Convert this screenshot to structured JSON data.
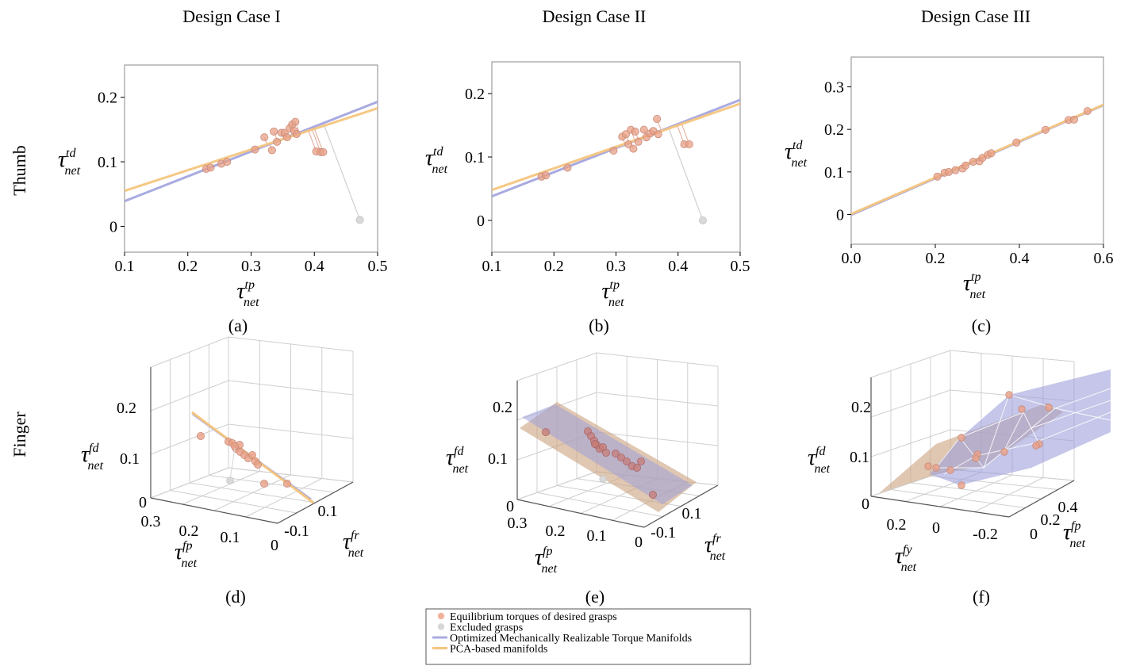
{
  "column_titles": [
    "Design Case I",
    "Design Case II",
    "Design Case III"
  ],
  "row_titles": [
    "Thumb",
    "Finger"
  ],
  "legend": [
    {
      "label": "Equilibrium torques of desired grasps",
      "kind": "marker",
      "color": "#f3b39a"
    },
    {
      "label": "Excluded grasps",
      "kind": "marker",
      "color": "#d7d7d7"
    },
    {
      "label": "Optimized Mechanically Realizable Torque Manifolds",
      "kind": "line",
      "color": "#a9abe0"
    },
    {
      "label": "PCA-based manifolds",
      "kind": "line",
      "color": "#f5c57e"
    }
  ],
  "colors": {
    "desired_marker": "#e8a087",
    "desired_marker_edge": "#c98a78",
    "excluded_marker": "#d9d9d9",
    "optimized": "#a9abe0",
    "pca": "#f5c57e",
    "pca_plane": "#c9a27f",
    "opt_plane": "#9fa0da"
  },
  "chart_data": [
    {
      "id": "a",
      "type": "scatter",
      "caption": "(a)",
      "axis_symbol": "τ",
      "xlabel_sup": "tp",
      "xlabel_sub": "net",
      "ylabel_sup": "td",
      "ylabel_sub": "net",
      "xlim": [
        0.1,
        0.5
      ],
      "ylim": [
        -0.04,
        0.25
      ],
      "xticks": [
        0.1,
        0.2,
        0.3,
        0.4,
        0.5
      ],
      "xtick_labels": [
        "0.1",
        "0.2",
        "0.3",
        "0.4",
        "0.5"
      ],
      "yticks": [
        0,
        0.1,
        0.2
      ],
      "ytick_labels": [
        "0",
        "0.1",
        "0.2"
      ],
      "points": [
        [
          0.229,
          0.089
        ],
        [
          0.236,
          0.091
        ],
        [
          0.253,
          0.097
        ],
        [
          0.262,
          0.1
        ],
        [
          0.306,
          0.119
        ],
        [
          0.321,
          0.138
        ],
        [
          0.333,
          0.118
        ],
        [
          0.336,
          0.147
        ],
        [
          0.341,
          0.131
        ],
        [
          0.348,
          0.145
        ],
        [
          0.353,
          0.145
        ],
        [
          0.357,
          0.138
        ],
        [
          0.361,
          0.152
        ],
        [
          0.365,
          0.158
        ],
        [
          0.368,
          0.148
        ],
        [
          0.37,
          0.162
        ],
        [
          0.372,
          0.143
        ],
        [
          0.403,
          0.116
        ],
        [
          0.41,
          0.115
        ],
        [
          0.414,
          0.115
        ]
      ],
      "excluded": [
        [
          0.472,
          0.01
        ]
      ],
      "optimized_line": [
        [
          0.1,
          0.039
        ],
        [
          0.5,
          0.193
        ]
      ],
      "pca_line": [
        [
          0.1,
          0.055
        ],
        [
          0.5,
          0.183
        ]
      ]
    },
    {
      "id": "b",
      "type": "scatter",
      "caption": "(b)",
      "axis_symbol": "τ",
      "xlabel_sup": "tp",
      "xlabel_sub": "net",
      "ylabel_sup": "td",
      "ylabel_sub": "net",
      "xlim": [
        0.1,
        0.5
      ],
      "ylim": [
        -0.05,
        0.25
      ],
      "xticks": [
        0.1,
        0.2,
        0.3,
        0.4,
        0.5
      ],
      "xtick_labels": [
        "0.1",
        "0.2",
        "0.3",
        "0.4",
        "0.5"
      ],
      "yticks": [
        0,
        0.1,
        0.2
      ],
      "ytick_labels": [
        "0",
        "0.1",
        "0.2"
      ],
      "points": [
        [
          0.18,
          0.069
        ],
        [
          0.187,
          0.071
        ],
        [
          0.222,
          0.083
        ],
        [
          0.296,
          0.11
        ],
        [
          0.31,
          0.132
        ],
        [
          0.316,
          0.136
        ],
        [
          0.32,
          0.12
        ],
        [
          0.324,
          0.143
        ],
        [
          0.328,
          0.113
        ],
        [
          0.331,
          0.14
        ],
        [
          0.336,
          0.124
        ],
        [
          0.345,
          0.143
        ],
        [
          0.349,
          0.131
        ],
        [
          0.355,
          0.137
        ],
        [
          0.36,
          0.141
        ],
        [
          0.366,
          0.16
        ],
        [
          0.368,
          0.136
        ],
        [
          0.41,
          0.12
        ],
        [
          0.418,
          0.12
        ]
      ],
      "excluded": [
        [
          0.44,
          0.0
        ]
      ],
      "optimized_line": [
        [
          0.1,
          0.038
        ],
        [
          0.5,
          0.19
        ]
      ],
      "pca_line": [
        [
          0.1,
          0.048
        ],
        [
          0.5,
          0.184
        ]
      ]
    },
    {
      "id": "c",
      "type": "scatter",
      "caption": "(c)",
      "axis_symbol": "τ",
      "xlabel_sup": "tp",
      "xlabel_sub": "net",
      "ylabel_sup": "td",
      "ylabel_sub": "net",
      "xlim": [
        0.0,
        0.6
      ],
      "ylim": [
        -0.07,
        0.37
      ],
      "xticks": [
        0.0,
        0.2,
        0.4,
        0.6
      ],
      "xtick_labels": [
        "0.0",
        "0.2",
        "0.4",
        "0.6"
      ],
      "yticks": [
        0,
        0.1,
        0.2,
        0.3
      ],
      "ytick_labels": [
        "0",
        "0.1",
        "0.2",
        "0.3"
      ],
      "points": [
        [
          0.205,
          0.089
        ],
        [
          0.222,
          0.098
        ],
        [
          0.232,
          0.1
        ],
        [
          0.248,
          0.104
        ],
        [
          0.265,
          0.108
        ],
        [
          0.272,
          0.115
        ],
        [
          0.29,
          0.124
        ],
        [
          0.305,
          0.125
        ],
        [
          0.312,
          0.133
        ],
        [
          0.325,
          0.14
        ],
        [
          0.333,
          0.144
        ],
        [
          0.393,
          0.169
        ],
        [
          0.462,
          0.199
        ],
        [
          0.517,
          0.222
        ],
        [
          0.53,
          0.223
        ],
        [
          0.562,
          0.243
        ]
      ],
      "excluded": [],
      "optimized_line": [
        [
          0.0,
          -0.001
        ],
        [
          0.6,
          0.257
        ]
      ],
      "pca_line": [
        [
          0.0,
          0.001
        ],
        [
          0.6,
          0.258
        ]
      ]
    },
    {
      "id": "d",
      "type": "scatter3d",
      "caption": "(d)",
      "axis_symbol": "τ",
      "x_axis": {
        "sup": "fp",
        "sub": "net",
        "tick_labels": [
          "0.3",
          "0.2",
          "0.1",
          "0"
        ]
      },
      "y_axis": {
        "sup": "fr",
        "sub": "net",
        "tick_labels": [
          "-0.1",
          "0.1"
        ]
      },
      "z_axis": {
        "sup": "fd",
        "sub": "net",
        "tick_labels": [
          "0",
          "0.1",
          "0.2"
        ]
      }
    },
    {
      "id": "e",
      "type": "scatter3d",
      "caption": "(e)",
      "axis_symbol": "τ",
      "x_axis": {
        "sup": "fp",
        "sub": "net",
        "tick_labels": [
          "0.3",
          "0.2",
          "0.1",
          "0"
        ]
      },
      "y_axis": {
        "sup": "fr",
        "sub": "net",
        "tick_labels": [
          "-0.1",
          "0.1"
        ]
      },
      "z_axis": {
        "sup": "fd",
        "sub": "net",
        "tick_labels": [
          "0",
          "0.1",
          "0.2"
        ]
      }
    },
    {
      "id": "f",
      "type": "scatter3d",
      "caption": "(f)",
      "axis_symbol": "τ",
      "x_axis": {
        "sup": "fy",
        "sub": "net",
        "tick_labels": [
          "0.2",
          "0",
          "-0.2"
        ]
      },
      "y_axis": {
        "sup": "fp",
        "sub": "net",
        "tick_labels": [
          "0",
          "0.2",
          "0.4"
        ]
      },
      "z_axis": {
        "sup": "fd",
        "sub": "net",
        "tick_labels": [
          "0",
          "0.1",
          "0.2"
        ]
      }
    }
  ]
}
